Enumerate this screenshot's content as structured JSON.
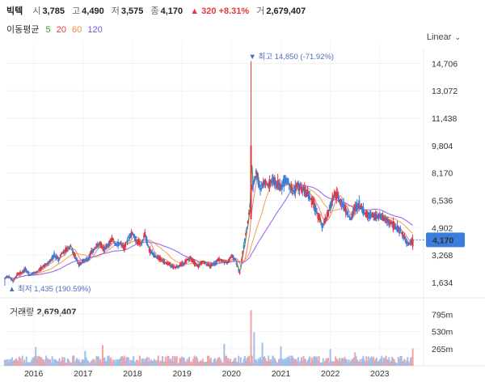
{
  "header": {
    "name": "빅텍",
    "open_label": "시",
    "open": "3,785",
    "high_label": "고",
    "high": "4,490",
    "low_label": "저",
    "low": "3,575",
    "close_label": "종",
    "close": "4,170",
    "change": "▲ 320 +8.31%",
    "volume_label": "거",
    "volume": "2,679,407"
  },
  "ma_legend": {
    "label": "이동평균",
    "p5": "5",
    "p20": "20",
    "p60": "60",
    "p120": "120"
  },
  "scale_button": "Linear",
  "volume_panel": {
    "label": "거래량",
    "value": "2,679,407"
  },
  "colors": {
    "up": "#e0383e",
    "down": "#3b7ddd",
    "ma5": "#2ca02c",
    "ma20": "#f2847f",
    "ma60": "#f5a55c",
    "ma120": "#9b6df0",
    "last_badge": "#3b7ddd"
  },
  "chart_data": {
    "type": "candlestick",
    "price_axis": {
      "ticks": [
        1634,
        3268,
        4902,
        6536,
        8170,
        9804,
        11438,
        13072,
        14706
      ],
      "tick_labels": [
        "1,634",
        "3,268",
        "4,902",
        "6,536",
        "8,170",
        "9,804",
        "11,438",
        "13,072",
        "14,706"
      ]
    },
    "x_axis": {
      "labels": [
        "2016",
        "2017",
        "2018",
        "2019",
        "2020",
        "2021",
        "2022",
        "2023"
      ]
    },
    "volume_axis": {
      "ticks": [
        265,
        530,
        795
      ],
      "tick_labels": [
        "265m",
        "530m",
        "795m"
      ]
    },
    "high_marker": {
      "label": "최고 14,850 (-71.92%)",
      "value": 14850,
      "date": "2020"
    },
    "low_marker": {
      "label": "최저 1,435 (190.59%)",
      "value": 1435,
      "date": "2015"
    },
    "last_price": {
      "label": "4,170",
      "value": 4170
    },
    "series_close": [
      [
        "2015.6",
        1900
      ],
      [
        "2015.7",
        2000
      ],
      [
        "2015.8",
        1700
      ],
      [
        "2015.9",
        2100
      ],
      [
        "2015.10",
        2200
      ],
      [
        "2015.11",
        2400
      ],
      [
        "2015.12",
        2100
      ],
      [
        "2016.1",
        2200
      ],
      [
        "2016.2",
        2300
      ],
      [
        "2016.3",
        2500
      ],
      [
        "2016.4",
        2700
      ],
      [
        "2016.5",
        2900
      ],
      [
        "2016.6",
        3300
      ],
      [
        "2016.7",
        3000
      ],
      [
        "2016.8",
        3400
      ],
      [
        "2016.9",
        3600
      ],
      [
        "2016.10",
        3800
      ],
      [
        "2016.11",
        3200
      ],
      [
        "2016.12",
        2700
      ],
      [
        "2017.1",
        2900
      ],
      [
        "2017.2",
        3000
      ],
      [
        "2017.3",
        3400
      ],
      [
        "2017.4",
        3700
      ],
      [
        "2017.5",
        4000
      ],
      [
        "2017.6",
        3600
      ],
      [
        "2017.7",
        3900
      ],
      [
        "2017.8",
        4200
      ],
      [
        "2017.9",
        3900
      ],
      [
        "2017.10",
        4000
      ],
      [
        "2017.11",
        3700
      ],
      [
        "2017.12",
        4300
      ],
      [
        "2018.1",
        4600
      ],
      [
        "2018.2",
        4100
      ],
      [
        "2018.3",
        3900
      ],
      [
        "2018.4",
        4500
      ],
      [
        "2018.5",
        3600
      ],
      [
        "2018.6",
        3300
      ],
      [
        "2018.7",
        3100
      ],
      [
        "2018.8",
        3000
      ],
      [
        "2018.9",
        2800
      ],
      [
        "2018.10",
        2700
      ],
      [
        "2018.11",
        2500
      ],
      [
        "2018.12",
        2600
      ],
      [
        "2019.1",
        2700
      ],
      [
        "2019.2",
        2900
      ],
      [
        "2019.3",
        3100
      ],
      [
        "2019.4",
        2800
      ],
      [
        "2019.5",
        2600
      ],
      [
        "2019.6",
        2900
      ],
      [
        "2019.7",
        2700
      ],
      [
        "2019.8",
        2600
      ],
      [
        "2019.9",
        2800
      ],
      [
        "2019.10",
        3000
      ],
      [
        "2019.11",
        2900
      ],
      [
        "2019.12",
        2800
      ],
      [
        "2020.1",
        3200
      ],
      [
        "2020.2",
        3000
      ],
      [
        "2020.3",
        2200
      ],
      [
        "2020.4",
        3800
      ],
      [
        "2020.5",
        5200
      ],
      [
        "2020.6",
        7200
      ],
      [
        "2020.7",
        8300
      ],
      [
        "2020.8",
        7200
      ],
      [
        "2020.9",
        7700
      ],
      [
        "2020.10",
        7400
      ],
      [
        "2020.11",
        7800
      ],
      [
        "2020.12",
        7500
      ],
      [
        "2021.1",
        7300
      ],
      [
        "2021.2",
        7800
      ],
      [
        "2021.3",
        7600
      ],
      [
        "2021.4",
        7000
      ],
      [
        "2021.5",
        7400
      ],
      [
        "2021.6",
        7200
      ],
      [
        "2021.7",
        7000
      ],
      [
        "2021.8",
        6700
      ],
      [
        "2021.9",
        6300
      ],
      [
        "2021.10",
        5600
      ],
      [
        "2021.11",
        5000
      ],
      [
        "2021.12",
        5400
      ],
      [
        "2022.1",
        6200
      ],
      [
        "2022.2",
        6900
      ],
      [
        "2022.3",
        6700
      ],
      [
        "2022.4",
        6300
      ],
      [
        "2022.5",
        5800
      ],
      [
        "2022.6",
        5400
      ],
      [
        "2022.7",
        6100
      ],
      [
        "2022.8",
        6300
      ],
      [
        "2022.9",
        5900
      ],
      [
        "2022.10",
        5600
      ],
      [
        "2022.11",
        5700
      ],
      [
        "2022.12",
        5500
      ],
      [
        "2023.1",
        5600
      ],
      [
        "2023.2",
        5400
      ],
      [
        "2023.3",
        5300
      ],
      [
        "2023.4",
        5100
      ],
      [
        "2023.5",
        4900
      ],
      [
        "2023.6",
        4700
      ],
      [
        "2023.7",
        4300
      ],
      [
        "2023.8",
        3850
      ],
      [
        "2023.9",
        4170
      ]
    ]
  }
}
